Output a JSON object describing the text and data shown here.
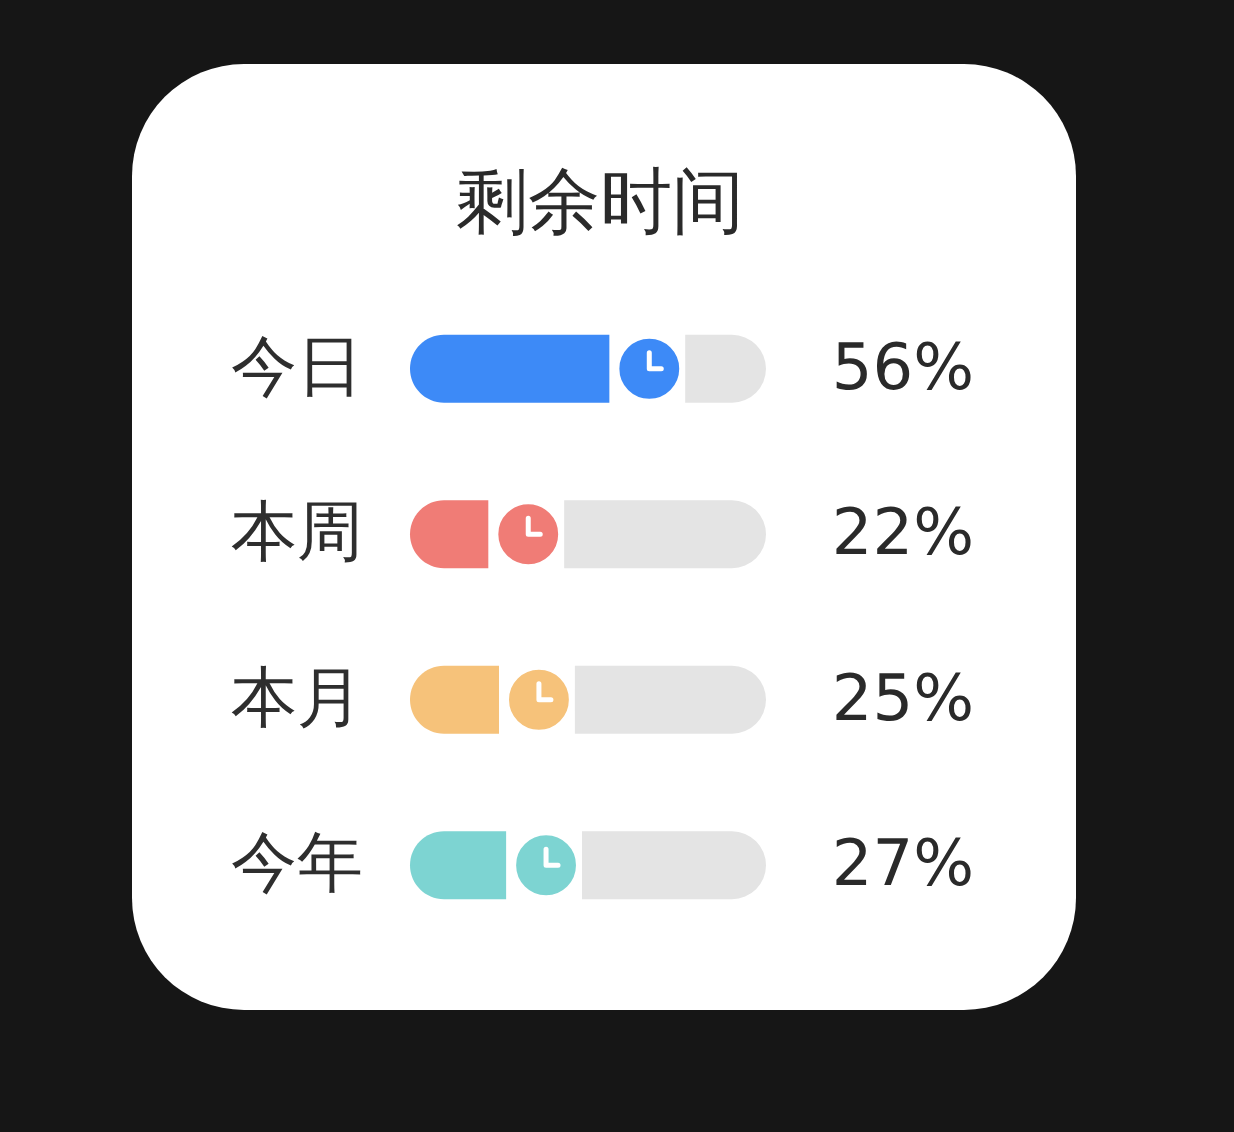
{
  "chart_data": {
    "type": "bar",
    "title": "剩余时间",
    "orientation": "horizontal",
    "categories": [
      "今日",
      "本周",
      "本月",
      "今年"
    ],
    "values": [
      56,
      22,
      25,
      27
    ],
    "colors": [
      "#3d8af7",
      "#f07c76",
      "#f6c27a",
      "#7dd4d2"
    ],
    "value_labels": [
      "56%",
      "22%",
      "25%",
      "27%"
    ],
    "xlim": [
      0,
      100
    ],
    "tick_labels": "y",
    "grid": false,
    "legend": false
  }
}
